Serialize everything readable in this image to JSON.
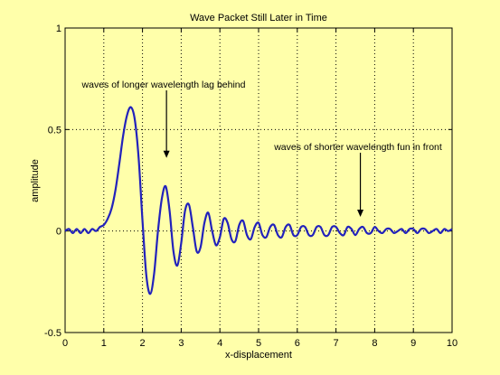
{
  "chart_data": {
    "type": "line",
    "title": "Wave Packet Still Later in Time",
    "xlabel": "x-displacement",
    "ylabel": "amplitude",
    "xlim": [
      0,
      10
    ],
    "ylim": [
      -0.5,
      1
    ],
    "xticks": [
      0,
      1,
      2,
      3,
      4,
      5,
      6,
      7,
      8,
      9,
      10
    ],
    "yticks": [
      -0.5,
      0,
      0.5,
      1
    ],
    "xtick_labels": [
      "0",
      "1",
      "2",
      "3",
      "4",
      "5",
      "6",
      "7",
      "8",
      "9",
      "10"
    ],
    "ytick_labels": [
      "-0.5",
      "0",
      "0.5",
      "1"
    ],
    "grid": true,
    "grid_style": "dotted",
    "line_color": "#2222bb",
    "annotations": [
      {
        "text": "waves of longer wavelength lag behind",
        "arrow_target": [
          2.62,
          0.36
        ]
      },
      {
        "text": "waves of shorter wavelength fun in front",
        "arrow_target": [
          7.63,
          0.07
        ]
      }
    ],
    "series": [
      {
        "x": [
          0.0,
          0.1,
          0.2,
          0.3,
          0.4,
          0.5,
          0.6,
          0.7,
          0.8,
          0.9,
          1.0,
          1.1,
          1.2,
          1.3,
          1.4,
          1.5,
          1.6,
          1.7,
          1.8,
          1.9,
          2.0,
          2.1,
          2.2,
          2.3,
          2.4,
          2.5,
          2.6,
          2.7,
          2.8,
          2.9,
          3.0,
          3.1,
          3.2,
          3.3,
          3.4,
          3.5,
          3.6,
          3.7,
          3.8,
          3.9,
          4.0,
          4.1,
          4.2,
          4.3,
          4.4,
          4.5,
          4.6,
          4.7,
          4.8,
          4.9,
          5.0,
          5.1,
          5.2,
          5.3,
          5.4,
          5.5,
          5.6,
          5.7,
          5.8,
          5.9,
          6.0,
          6.1,
          6.2,
          6.3,
          6.4,
          6.5,
          6.6,
          6.7,
          6.8,
          6.9,
          7.0,
          7.1,
          7.2,
          7.3,
          7.4,
          7.5,
          7.6,
          7.7,
          7.8,
          7.9,
          8.0,
          8.1,
          8.2,
          8.3,
          8.4,
          8.5,
          8.6,
          8.7,
          8.8,
          8.9,
          9.0,
          9.1,
          9.2,
          9.3,
          9.4,
          9.5,
          9.6,
          9.7,
          9.8,
          9.9,
          10.0
        ],
        "y": [
          0.0,
          0.01,
          -0.01,
          0.01,
          -0.01,
          0.01,
          -0.01,
          0.01,
          0.0,
          0.02,
          0.03,
          0.06,
          0.11,
          0.2,
          0.33,
          0.47,
          0.57,
          0.61,
          0.55,
          0.36,
          0.05,
          -0.22,
          -0.31,
          -0.21,
          0.0,
          0.16,
          0.22,
          0.1,
          -0.1,
          -0.17,
          -0.06,
          0.1,
          0.13,
          0.02,
          -0.1,
          -0.08,
          0.04,
          0.09,
          0.0,
          -0.07,
          -0.03,
          0.06,
          0.04,
          -0.04,
          -0.05,
          0.03,
          0.05,
          -0.02,
          -0.04,
          0.02,
          0.04,
          -0.02,
          -0.03,
          0.02,
          0.03,
          -0.02,
          -0.03,
          0.02,
          0.03,
          -0.02,
          -0.02,
          0.02,
          0.02,
          -0.02,
          -0.02,
          0.02,
          0.02,
          -0.02,
          -0.02,
          0.02,
          0.02,
          -0.01,
          -0.02,
          0.02,
          0.01,
          -0.02,
          0.01,
          0.02,
          -0.01,
          -0.01,
          0.02,
          0.0,
          -0.01,
          0.01,
          0.01,
          -0.01,
          0.0,
          0.01,
          -0.01,
          0.01,
          0.01,
          -0.01,
          0.01,
          0.01,
          -0.01,
          0.0,
          0.01,
          -0.01,
          0.01,
          0.0,
          0.01
        ]
      }
    ]
  }
}
